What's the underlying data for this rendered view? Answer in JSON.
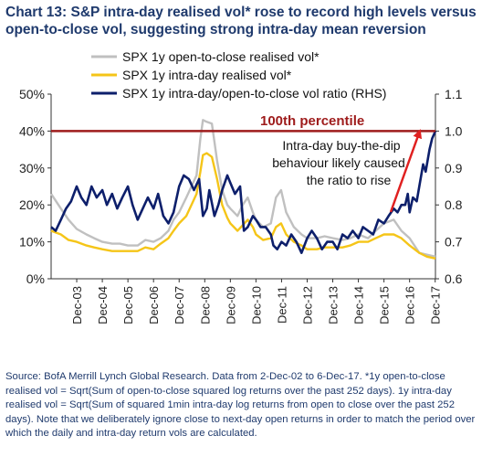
{
  "title": "Chart 13: S&P intra-day realised vol* rose to record high levels versus open-to-close vol, suggesting strong intra-day mean reversion",
  "source": "Source: BofA Merrill Lynch Global Research. Data from 2-Dec-02 to 6-Dec-17. *1y open-to-close realised vol = Sqrt(Sum of open-to-close squared log returns over the past 252 days). 1y intra-day realised vol = Sqrt(Sum of squared 1min intra-day log returns from open to close over the past 252 days). Note that we deliberately ignore close to next-day open returns in order to match the period over which the daily and intra-day return vols are calculated.",
  "colors": {
    "open_close": "#c0c0c0",
    "intraday": "#f5c518",
    "ratio": "#0d1f6b",
    "percentile": "#9e1b1b",
    "arrow": "#e02020"
  },
  "chart_data": {
    "type": "line",
    "x_ticks": [
      "Dec-03",
      "Dec-04",
      "Dec-05",
      "Dec-06",
      "Dec-07",
      "Dec-08",
      "Dec-09",
      "Dec-10",
      "Dec-11",
      "Dec-12",
      "Dec-13",
      "Dec-14",
      "Dec-15",
      "Dec-16",
      "Dec-17"
    ],
    "x_range": [
      2002.92,
      2017.93
    ],
    "y_left": {
      "ticks": [
        "0%",
        "10%",
        "20%",
        "30%",
        "40%",
        "50%"
      ],
      "range": [
        0,
        50
      ]
    },
    "y_right": {
      "ticks": [
        "0.6",
        "0.7",
        "0.8",
        "0.9",
        "1.0",
        "1.1"
      ],
      "range": [
        0.6,
        1.1
      ]
    },
    "legend": [
      "SPX 1y open-to-close realised vol*",
      "SPX 1y intra-day realised vol*",
      "SPX 1y intra-day/open-to-close vol ratio (RHS)"
    ],
    "percentile_line": {
      "label": "100th percentile",
      "value": 1.0,
      "axis": "right"
    },
    "annotation": [
      "Intra-day buy-the-dip",
      "behaviour likely caused",
      "the ratio to rise"
    ],
    "series": [
      {
        "name": "SPX 1y open-to-close realised vol*",
        "axis": "left",
        "x": [
          2002.92,
          2003.3,
          2003.6,
          2003.92,
          2004.3,
          2004.6,
          2004.92,
          2005.3,
          2005.6,
          2005.92,
          2006.3,
          2006.6,
          2006.92,
          2007.2,
          2007.5,
          2007.7,
          2007.92,
          2008.2,
          2008.4,
          2008.6,
          2008.75,
          2008.85,
          2009.0,
          2009.2,
          2009.4,
          2009.6,
          2009.8,
          2009.92,
          2010.2,
          2010.4,
          2010.6,
          2010.8,
          2010.92,
          2011.2,
          2011.5,
          2011.7,
          2011.9,
          2012.1,
          2012.4,
          2012.7,
          2012.92,
          2013.3,
          2013.6,
          2013.92,
          2014.3,
          2014.6,
          2014.92,
          2015.3,
          2015.6,
          2015.92,
          2016.3,
          2016.6,
          2016.92,
          2017.3,
          2017.6,
          2017.93
        ],
        "values": [
          23,
          19,
          16,
          13.5,
          12,
          11,
          10,
          9.5,
          9.5,
          9,
          9,
          10.5,
          10,
          11,
          13,
          16,
          18,
          22,
          25,
          28,
          38,
          43,
          42.5,
          42,
          32,
          24,
          20,
          19,
          17,
          20,
          22,
          18,
          16,
          14,
          15,
          22,
          24,
          18,
          14,
          12,
          11,
          11,
          11.5,
          11,
          10.5,
          11,
          12,
          11,
          13,
          15,
          16,
          13,
          11,
          7,
          6.5,
          6
        ]
      },
      {
        "name": "SPX 1y intra-day realised vol*",
        "axis": "left",
        "x": [
          2002.92,
          2003.3,
          2003.6,
          2003.92,
          2004.3,
          2004.6,
          2004.92,
          2005.3,
          2005.6,
          2005.92,
          2006.3,
          2006.6,
          2006.92,
          2007.2,
          2007.5,
          2007.7,
          2007.92,
          2008.2,
          2008.4,
          2008.6,
          2008.75,
          2008.85,
          2009.0,
          2009.2,
          2009.4,
          2009.6,
          2009.8,
          2009.92,
          2010.2,
          2010.4,
          2010.6,
          2010.8,
          2010.92,
          2011.2,
          2011.5,
          2011.7,
          2011.9,
          2012.1,
          2012.4,
          2012.7,
          2012.92,
          2013.3,
          2013.6,
          2013.92,
          2014.3,
          2014.6,
          2014.92,
          2015.3,
          2015.6,
          2015.92,
          2016.3,
          2016.6,
          2016.92,
          2017.3,
          2017.6,
          2017.93
        ],
        "values": [
          13,
          12,
          10.5,
          10,
          9,
          8.5,
          8,
          7.5,
          7.5,
          7.5,
          7.5,
          8.5,
          8,
          9.5,
          11,
          13,
          15,
          17,
          20,
          23,
          29,
          33.5,
          34,
          33,
          27,
          20,
          16.5,
          15,
          13,
          14.5,
          16,
          14,
          12,
          10.5,
          11,
          14,
          15,
          12,
          10,
          9,
          8,
          8,
          8.5,
          8.5,
          8.5,
          9,
          10,
          10,
          11,
          12,
          12,
          11,
          9,
          7,
          6,
          5.5
        ]
      },
      {
        "name": "SPX 1y intra-day/open-to-close vol ratio (RHS)",
        "axis": "right",
        "x": [
          2002.92,
          2003.1,
          2003.3,
          2003.5,
          2003.7,
          2003.92,
          2004.1,
          2004.3,
          2004.5,
          2004.7,
          2004.92,
          2005.1,
          2005.3,
          2005.5,
          2005.7,
          2005.92,
          2006.1,
          2006.3,
          2006.5,
          2006.7,
          2006.92,
          2007.1,
          2007.3,
          2007.5,
          2007.7,
          2007.92,
          2008.1,
          2008.3,
          2008.5,
          2008.7,
          2008.85,
          2009.0,
          2009.1,
          2009.3,
          2009.45,
          2009.6,
          2009.8,
          2009.92,
          2010.1,
          2010.3,
          2010.45,
          2010.6,
          2010.8,
          2010.92,
          2011.1,
          2011.3,
          2011.5,
          2011.6,
          2011.75,
          2011.92,
          2012.1,
          2012.3,
          2012.5,
          2012.7,
          2012.92,
          2013.1,
          2013.3,
          2013.5,
          2013.7,
          2013.92,
          2014.1,
          2014.3,
          2014.5,
          2014.7,
          2014.92,
          2015.1,
          2015.3,
          2015.5,
          2015.7,
          2015.92,
          2016.1,
          2016.3,
          2016.45,
          2016.6,
          2016.75,
          2016.85,
          2016.92,
          2017.05,
          2017.2,
          2017.3,
          2017.45,
          2017.55,
          2017.7,
          2017.8,
          2017.93
        ],
        "values": [
          0.74,
          0.73,
          0.76,
          0.79,
          0.81,
          0.85,
          0.82,
          0.8,
          0.85,
          0.82,
          0.84,
          0.8,
          0.83,
          0.79,
          0.82,
          0.85,
          0.8,
          0.76,
          0.79,
          0.82,
          0.79,
          0.83,
          0.77,
          0.75,
          0.78,
          0.85,
          0.88,
          0.87,
          0.84,
          0.87,
          0.77,
          0.79,
          0.84,
          0.77,
          0.8,
          0.84,
          0.88,
          0.86,
          0.83,
          0.85,
          0.73,
          0.74,
          0.77,
          0.76,
          0.74,
          0.74,
          0.72,
          0.69,
          0.68,
          0.7,
          0.69,
          0.72,
          0.7,
          0.67,
          0.71,
          0.73,
          0.71,
          0.68,
          0.7,
          0.7,
          0.68,
          0.72,
          0.71,
          0.73,
          0.71,
          0.74,
          0.73,
          0.72,
          0.76,
          0.75,
          0.77,
          0.79,
          0.78,
          0.8,
          0.8,
          0.83,
          0.78,
          0.82,
          0.81,
          0.85,
          0.91,
          0.89,
          0.95,
          0.98,
          1.0
        ]
      }
    ]
  }
}
